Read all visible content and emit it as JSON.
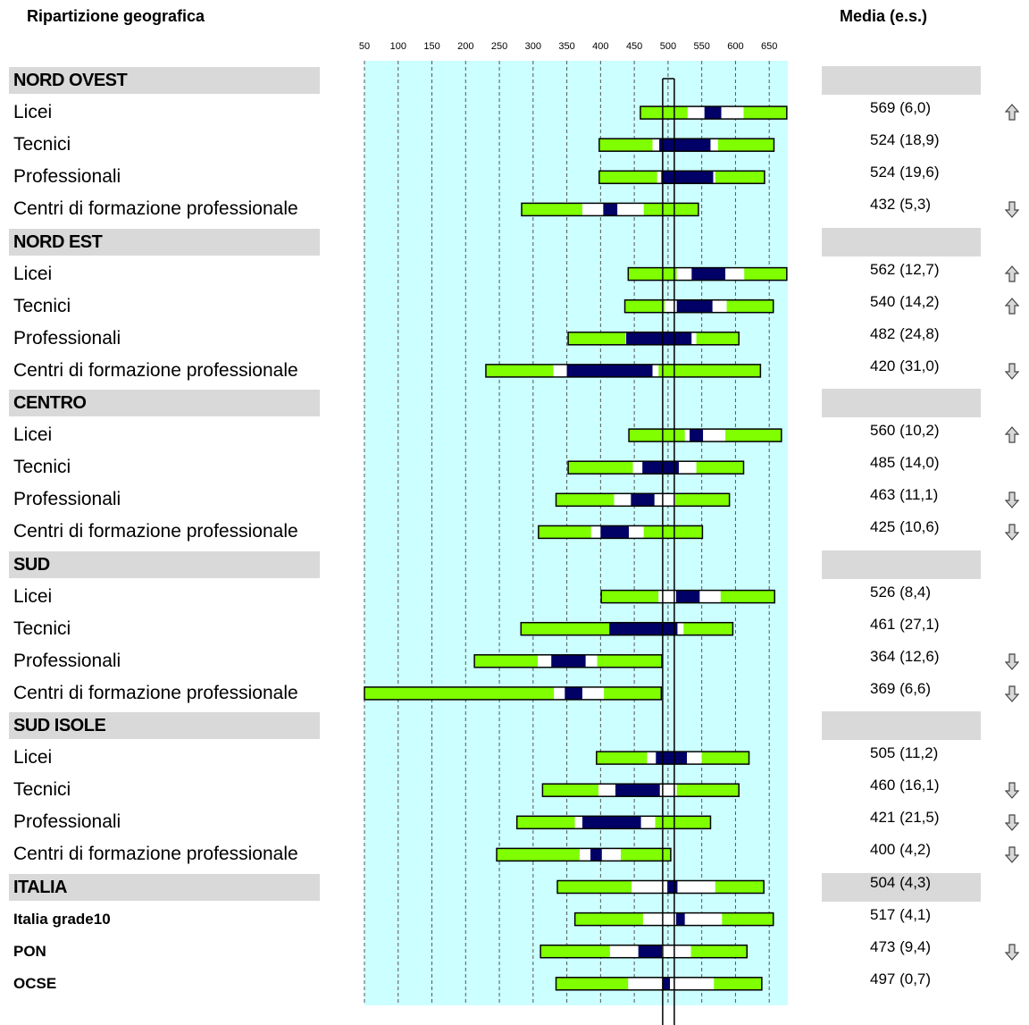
{
  "headers": {
    "left": "Ripartizione geografica",
    "right": "Media (e.s.)"
  },
  "chart_data": {
    "type": "bar",
    "subtype": "percentile-range",
    "x_ticks": [
      50,
      100,
      150,
      200,
      250,
      300,
      350,
      400,
      450,
      500,
      550,
      600,
      650
    ],
    "reference_line": 500,
    "grid": true,
    "bar_style": {
      "green": "#7fff00",
      "white": "#ffffff",
      "navy": "#000066",
      "border": "#000000",
      "background": "#ccffff"
    },
    "rows": [
      {
        "label": "NORD OVEST",
        "section": true
      },
      {
        "label": "Licei",
        "value": "569 (6,0)",
        "arrow": "up",
        "bar": [
          459,
          529,
          554,
          579,
          612,
          676
        ]
      },
      {
        "label": "Tecnici",
        "value": "524 (18,9)",
        "arrow": "",
        "bar": [
          398,
          477,
          487,
          563,
          574,
          657
        ]
      },
      {
        "label": "Professionali",
        "value": "524 (19,6)",
        "arrow": "",
        "bar": [
          398,
          484,
          490,
          567,
          570,
          643
        ]
      },
      {
        "label": "Centri di formazione professionale",
        "value": "432 (5,3)",
        "arrow": "down",
        "bar": [
          283,
          373,
          404,
          425,
          464,
          545
        ]
      },
      {
        "label": "NORD EST",
        "section": true
      },
      {
        "label": "Licei",
        "value": "562 (12,7)",
        "arrow": "up",
        "bar": [
          441,
          513,
          535,
          585,
          613,
          676
        ]
      },
      {
        "label": "Tecnici",
        "value": "540 (14,2)",
        "arrow": "up",
        "bar": [
          436,
          495,
          513,
          566,
          587,
          656
        ]
      },
      {
        "label": "Professionali",
        "value": "482 (24,8)",
        "arrow": "",
        "bar": [
          352,
          437,
          438,
          535,
          542,
          605
        ]
      },
      {
        "label": "Centri di formazione professionale",
        "value": "420 (31,0)",
        "arrow": "down",
        "bar": [
          230,
          330,
          350,
          477,
          486,
          637
        ]
      },
      {
        "label": "CENTRO",
        "section": true
      },
      {
        "label": "Licei",
        "value": "560 (10,2)",
        "arrow": "up",
        "bar": [
          442,
          525,
          532,
          552,
          585,
          668
        ]
      },
      {
        "label": "Tecnici",
        "value": "485 (14,0)",
        "arrow": "",
        "bar": [
          352,
          448,
          462,
          516,
          542,
          612
        ]
      },
      {
        "label": "Professionali",
        "value": "463 (11,1)",
        "arrow": "down",
        "bar": [
          334,
          420,
          445,
          480,
          511,
          591
        ]
      },
      {
        "label": "Centri di formazione professionale",
        "value": "425 (10,6)",
        "arrow": "down",
        "bar": [
          308,
          386,
          400,
          442,
          464,
          551
        ]
      },
      {
        "label": "SUD",
        "section": true
      },
      {
        "label": "Licei",
        "value": "526 (8,4)",
        "arrow": "",
        "bar": [
          401,
          486,
          512,
          547,
          578,
          658
        ]
      },
      {
        "label": "Tecnici",
        "value": "461 (27,1)",
        "arrow": "",
        "bar": [
          282,
          413,
          413,
          514,
          523,
          596
        ]
      },
      {
        "label": "Professionali",
        "value": "364 (12,6)",
        "arrow": "down",
        "bar": [
          213,
          307,
          327,
          378,
          395,
          491
        ]
      },
      {
        "label": "Centri di formazione professionale",
        "value": "369 (6,6)",
        "arrow": "down",
        "bar": [
          50,
          331,
          347,
          373,
          405,
          490
        ]
      },
      {
        "label": "SUD ISOLE",
        "section": true
      },
      {
        "label": "Licei",
        "value": "505 (11,2)",
        "arrow": "",
        "bar": [
          394,
          469,
          482,
          528,
          550,
          620
        ]
      },
      {
        "label": "Tecnici",
        "value": "460 (16,1)",
        "arrow": "down",
        "bar": [
          314,
          397,
          422,
          488,
          513,
          605
        ]
      },
      {
        "label": "Professionali",
        "value": "421 (21,5)",
        "arrow": "down",
        "bar": [
          276,
          362,
          373,
          460,
          481,
          563
        ]
      },
      {
        "label": "Centri di formazione professionale",
        "value": "400 (4,2)",
        "arrow": "down",
        "bar": [
          246,
          369,
          385,
          402,
          430,
          504
        ]
      },
      {
        "label": "ITALIA",
        "section": true,
        "value": "504 (4,3)",
        "arrow": "",
        "bar": [
          336,
          446,
          499,
          514,
          570,
          642
        ]
      },
      {
        "label": "Italia grade10",
        "value": "517 (4,1)",
        "arrow": "",
        "bold": true,
        "bar": [
          362,
          463,
          512,
          525,
          580,
          656
        ]
      },
      {
        "label": "PON",
        "value": "473 (9,4)",
        "arrow": "down",
        "bold": true,
        "bar": [
          311,
          414,
          456,
          491,
          534,
          617
        ]
      },
      {
        "label": "OCSE",
        "value": "497 (0,7)",
        "arrow": "",
        "bold": true,
        "bar": [
          334,
          441,
          492,
          503,
          568,
          639
        ]
      }
    ]
  }
}
